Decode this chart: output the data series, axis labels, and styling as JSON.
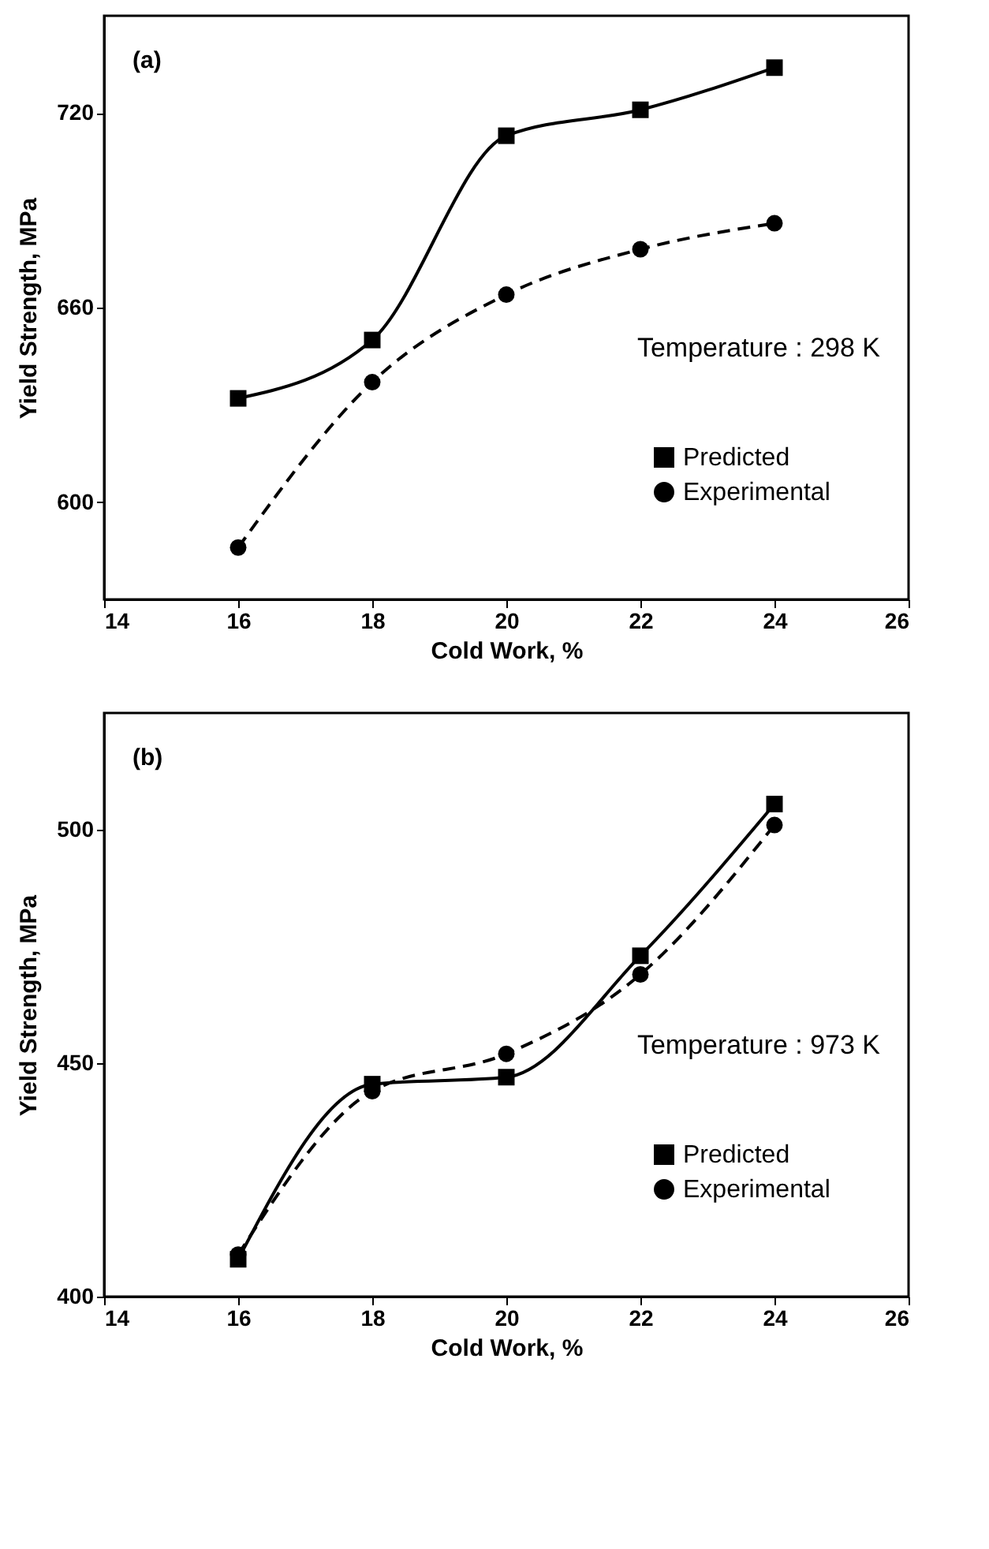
{
  "chart_data": [
    {
      "type": "line",
      "x": [
        16,
        18,
        20,
        22,
        24
      ],
      "xlabel": "Cold Work, %",
      "ylabel": "Yield Strength, MPa",
      "xlim": [
        14,
        26
      ],
      "xticks": [
        14,
        16,
        18,
        20,
        22,
        24,
        26
      ],
      "ylim": [
        570,
        750
      ],
      "yticks": [
        600,
        660,
        720
      ],
      "grid": false,
      "legend": "bottom right",
      "annotations": [
        "(a)",
        "Temperature : 298 K"
      ],
      "series": [
        {
          "name": "Predicted",
          "color": "#000000",
          "marker": "square",
          "line_style": "solid",
          "values": [
            632,
            650,
            713,
            721,
            734
          ]
        },
        {
          "name": "Experimental",
          "color": "#000000",
          "marker": "circle",
          "line_style": "dashed",
          "values": [
            586,
            637,
            664,
            678,
            686
          ]
        }
      ]
    },
    {
      "type": "line",
      "x": [
        16,
        18,
        20,
        22,
        24
      ],
      "xlabel": "Cold Work, %",
      "ylabel": "Yield Strength, MPa",
      "xlim": [
        14,
        26
      ],
      "xticks": [
        14,
        16,
        18,
        20,
        22,
        24,
        26
      ],
      "ylim": [
        400,
        525
      ],
      "yticks": [
        400,
        450,
        500
      ],
      "grid": false,
      "legend": "bottom right",
      "annotations": [
        "(b)",
        "Temperature : 973 K"
      ],
      "series": [
        {
          "name": "Predicted",
          "color": "#000000",
          "marker": "square",
          "line_style": "solid",
          "values": [
            408,
            445.5,
            447,
            473,
            505.5
          ]
        },
        {
          "name": "Experimental",
          "color": "#000000",
          "marker": "circle",
          "line_style": "dashed",
          "values": [
            409,
            444,
            452,
            469,
            501
          ]
        }
      ]
    }
  ]
}
